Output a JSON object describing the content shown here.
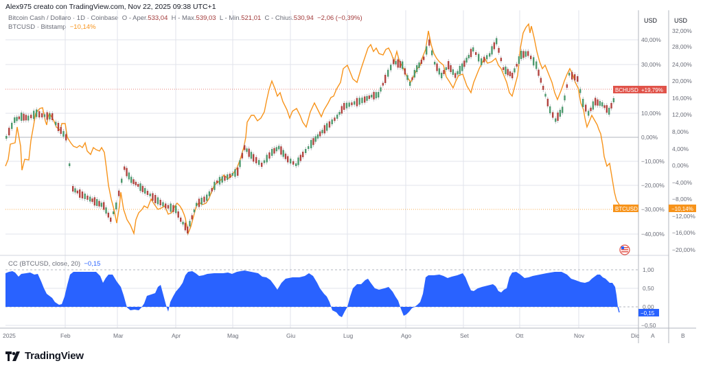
{
  "caption": "Alex975 creato con TradingView.com, Nov 22, 2025 09:38 UTC+1",
  "legend": {
    "main": {
      "symbol_desc": "Bitcoin Cash / Dollaro · 1D · Coinbase",
      "open_label": "O - Aper.",
      "open": "533,04",
      "high_label": "H - Max.",
      "high": "539,03",
      "low_label": "L - Min.",
      "low": "521,01",
      "close_label": "C - Chius.",
      "close": "530,94",
      "change": "−2,06 (−0,39%)"
    },
    "compare": {
      "symbol_desc": "BTCUSD · Bitstamp",
      "value": "−10,14%"
    },
    "indicator": {
      "name": "CC (BTCUSD, close, 20)",
      "value": "−0,15"
    }
  },
  "axes": {
    "left_scale": {
      "currency": "USD",
      "ticks": [
        "40,00%",
        "30,00%",
        "10,00%",
        "0,00%",
        "−10,00%",
        "−20,00%",
        "−30,00%",
        "−40,00%"
      ]
    },
    "right_scale": {
      "currency": "USD",
      "ticks": [
        "32,00%",
        "28,00%",
        "24,00%",
        "20,00%",
        "16,00%",
        "12,00%",
        "8,00%",
        "4,00%",
        "0,00%",
        "−4,00%",
        "−8,00%",
        "−12,00%",
        "−16,00%",
        "−20,00%"
      ]
    },
    "indicator_scale": {
      "ticks": [
        "1,00",
        "0,50",
        "0,00",
        "−0,50"
      ]
    },
    "time_ticks": [
      "2025",
      "Feb",
      "Mar",
      "Apr",
      "Mag",
      "Giu",
      "Lug",
      "Ago",
      "Set",
      "Ott",
      "Nov",
      "Dic"
    ],
    "pane_labels": [
      "A",
      "B"
    ]
  },
  "badges": {
    "bch_label": "BCHUSD",
    "bch_value": "+19,79%",
    "btc_label": "BTCUSD",
    "btc_value": "−10,14%",
    "cc_value": "−0,15"
  },
  "colors": {
    "up": "#4c9a6e",
    "down": "#b2433f",
    "btc_line": "#f7931a",
    "cc_fill": "#2962ff",
    "bch_badge": "#e0534a"
  },
  "brand": {
    "name": "TradingView"
  },
  "chart_data": [
    {
      "type": "line",
      "title": "Bitcoin Cash / Dollaro · 1D · Coinbase vs BTCUSD · Bitstamp (percent scale)",
      "x": [
        "2025-01",
        "Feb",
        "Mar",
        "Apr",
        "Mag",
        "Giu",
        "Lug",
        "Ago",
        "Set",
        "Ott",
        "Nov",
        "Nov-22"
      ],
      "series": [
        {
          "name": "BCHUSD (Coinbase, % change)",
          "values": [
            3,
            2,
            -5,
            -33,
            -12,
            -5,
            12,
            28,
            25,
            30,
            12,
            19.79
          ]
        },
        {
          "name": "BTCUSD (Bitstamp, % change)",
          "values": [
            -4,
            8,
            3,
            -8,
            3,
            12,
            18,
            24,
            18,
            30,
            12,
            -10.14
          ]
        }
      ],
      "ylabel": "USD %",
      "ylim": [
        -45,
        45
      ],
      "last_values": {
        "BCHUSD": "+19,79%",
        "BTCUSD": "−10,14%"
      },
      "ohlc_last": {
        "open": 533.04,
        "high": 539.03,
        "low": 521.01,
        "close": 530.94,
        "change": -2.06,
        "change_pct": -0.39
      }
    },
    {
      "type": "area",
      "title": "CC (BTCUSD, close, 20)",
      "x": [
        "2025-01",
        "Feb",
        "Mar",
        "Apr",
        "Mag",
        "Giu",
        "Lug",
        "Ago",
        "Set",
        "Ott",
        "Nov",
        "Nov-22"
      ],
      "values": [
        0.95,
        0.1,
        0.9,
        -0.1,
        0.95,
        0.9,
        -0.3,
        0.55,
        0.95,
        0.95,
        0.7,
        -0.15
      ],
      "ylim": [
        -0.5,
        1.0
      ],
      "last_value": -0.15
    }
  ]
}
